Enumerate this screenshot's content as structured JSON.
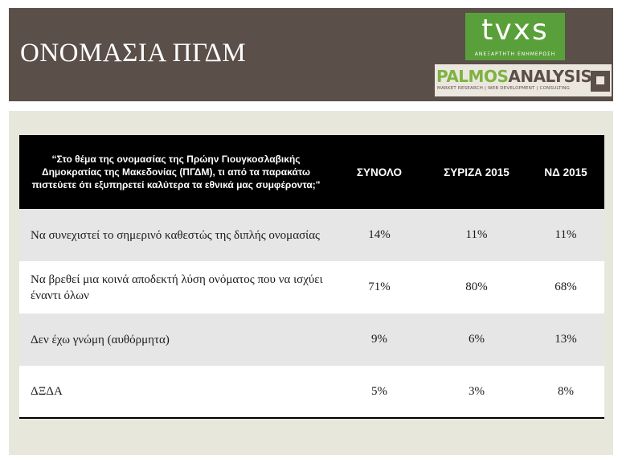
{
  "header": {
    "title": "ΟΝΟΜΑΣΙΑ ΠΓΔΜ",
    "logo_tvxs": {
      "text": "tvxs",
      "subtitle": "ΑΝΕΞΑΡΤΗΤΗ ΕΝΗΜΕΡΩΣΗ"
    },
    "logo_palmos": {
      "name_part1": "PALMOS",
      "name_part2": "ANALYSIS",
      "tagline": "MARKET RESEARCH | WEB DEVELOPMENT | CONSULTING"
    }
  },
  "table": {
    "question": "“Στο θέμα της ονομασίας της Πρώην Γιουγκοσλαβικής Δημοκρατίας της Μακεδονίας (ΠΓΔΜ), τι από τα παρακάτω πιστεύετε ότι εξυπηρετεί καλύτερα τα εθνικά μας συμφέροντα;\"",
    "columns": [
      "ΣΥΝΟΛΟ",
      "ΣΥΡΙΖΑ 2015",
      "ΝΔ 2015"
    ],
    "rows": [
      {
        "label": "Να συνεχιστεί το σημερινό καθεστώς της διπλής ονομασίας",
        "values": [
          "14%",
          "11%",
          "11%"
        ]
      },
      {
        "label": "Να βρεθεί μια κοινά αποδεκτή λύση ονόματος που να ισχύει έναντι όλων",
        "values": [
          "71%",
          "80%",
          "68%"
        ]
      },
      {
        "label": "Δεν έχω γνώμη (αυθόρμητα)",
        "values": [
          "9%",
          "6%",
          "13%"
        ]
      },
      {
        "label": "ΔΞΔΑ",
        "values": [
          "5%",
          "3%",
          "8%"
        ]
      }
    ]
  },
  "colors": {
    "header_bg": "#5b4f4a",
    "panel_bg": "#e7e7dc",
    "tvxs_green": "#5aa03a",
    "palmos_green": "#7cb342"
  }
}
